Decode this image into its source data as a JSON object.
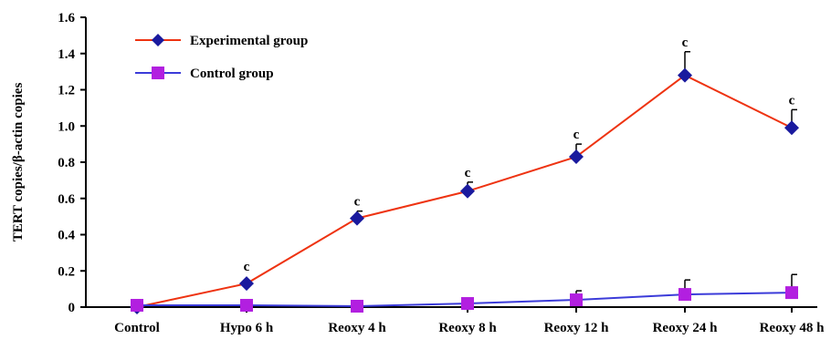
{
  "chart_data": {
    "type": "line",
    "title": "",
    "xlabel": "",
    "ylabel": "TERT copies/β-actin copies",
    "categories": [
      "Control",
      "Hypo 6 h",
      "Reoxy 4 h",
      "Reoxy 8 h",
      "Reoxy 12 h",
      "Reoxy 24 h",
      "Reoxy 48 h"
    ],
    "ylim": [
      0,
      1.6
    ],
    "yticks": [
      "0",
      "0.2",
      "0.4",
      "0.6",
      "0.8",
      "1.0",
      "1.2",
      "1.4",
      "1.6"
    ],
    "grid": false,
    "legend_position": "top-left",
    "series": [
      {
        "name": "Experimental group",
        "line_color": "#ee3311",
        "marker": "diamond",
        "marker_color": "#1a1a9e",
        "values": [
          0.0,
          0.13,
          0.49,
          0.64,
          0.83,
          1.28,
          0.99
        ],
        "error": [
          0,
          0,
          0.04,
          0.05,
          0.07,
          0.13,
          0.1
        ],
        "significance": [
          "",
          "c",
          "c",
          "c",
          "c",
          "c",
          "c"
        ]
      },
      {
        "name": "Control group",
        "line_color": "#3b3bd9",
        "marker": "square",
        "marker_color": "#b21fe0",
        "values": [
          0.01,
          0.01,
          0.005,
          0.02,
          0.04,
          0.07,
          0.08
        ],
        "error": [
          0,
          0,
          0,
          0,
          0.05,
          0.08,
          0.1
        ],
        "significance": [
          "",
          "",
          "",
          "",
          "",
          "",
          ""
        ]
      }
    ]
  }
}
